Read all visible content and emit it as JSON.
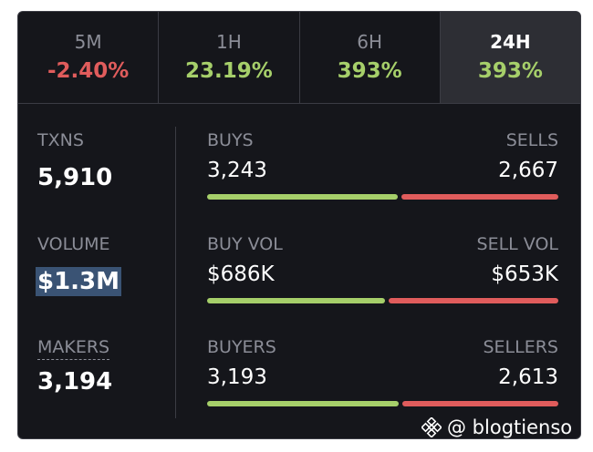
{
  "tabs": [
    {
      "label": "5M",
      "value": "-2.40%",
      "trend": "negative"
    },
    {
      "label": "1H",
      "value": "23.19%",
      "trend": "positive"
    },
    {
      "label": "6H",
      "value": "393%",
      "trend": "positive"
    },
    {
      "label": "24H",
      "value": "393%",
      "trend": "positive",
      "active": true
    }
  ],
  "stats": {
    "txns": {
      "label": "TXNS",
      "value": "5,910"
    },
    "volume": {
      "label": "VOLUME",
      "value": "$1.3M"
    },
    "makers": {
      "label": "MAKERS",
      "value": "3,194"
    }
  },
  "pairs": [
    {
      "left_label": "BUYS",
      "left_value": "3,243",
      "right_label": "SELLS",
      "right_value": "2,667",
      "buy_share": 0.549
    },
    {
      "left_label": "BUY VOL",
      "left_value": "$686K",
      "right_label": "SELL VOL",
      "right_value": "$653K",
      "buy_share": 0.512
    },
    {
      "left_label": "BUYERS",
      "left_value": "3,193",
      "right_label": "SELLERS",
      "right_value": "2,613",
      "buy_share": 0.55
    }
  ],
  "colors": {
    "positive": "#a6cf6a",
    "negative": "#e05c5c",
    "background": "#15161b",
    "active_tab": "#2d2e34"
  },
  "watermark": {
    "icon": "binance-logo-icon",
    "text": "@ blogtienso"
  }
}
